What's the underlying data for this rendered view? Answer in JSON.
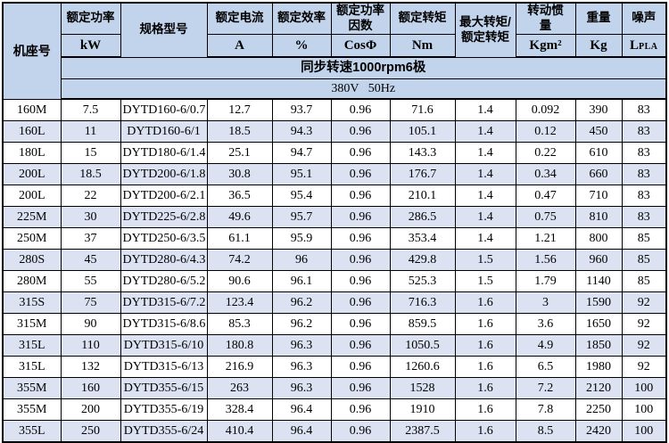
{
  "table": {
    "header": {
      "frame_col": "机座号",
      "rated_power_title": "额定功率",
      "rated_power_unit": "kW",
      "model_title": "规格型号",
      "rated_current_title": "额定电流",
      "rated_current_unit": "A",
      "rated_efficiency_title": "额定效率",
      "rated_efficiency_unit": "%",
      "power_factor_title": "额定功率因数",
      "power_factor_unit": "CosΦ",
      "rated_torque_title": "额定转矩",
      "rated_torque_unit": "Nm",
      "max_torque_ratio_title": "最大转矩/额定转矩",
      "inertia_title": "转动惯量",
      "inertia_unit": "Kgm²",
      "weight_title": "重量",
      "weight_unit": "Kg",
      "noise_title": "噪声",
      "noise_unit_main": "L",
      "noise_unit_sub": "PLA",
      "speed_row": "同步转速1000rpm6极",
      "voltage_row": "380V   50Hz"
    },
    "columns": [
      "机座号",
      "额定功率 kW",
      "规格型号",
      "额定电流 A",
      "额定效率 %",
      "额定功率因数 CosΦ",
      "额定转矩 Nm",
      "最大转矩/额定转矩",
      "转动惯量 Kgm²",
      "重量 Kg",
      "噪声 LPLA"
    ],
    "rows": [
      [
        "160M",
        "7.5",
        "DYTD160-6/0.7",
        "12.7",
        "93.7",
        "0.96",
        "71.6",
        "1.4",
        "0.092",
        "390",
        "83"
      ],
      [
        "160L",
        "11",
        "DYTD160-6/1",
        "18.5",
        "94.3",
        "0.96",
        "105.1",
        "1.4",
        "0.12",
        "450",
        "83"
      ],
      [
        "180L",
        "15",
        "DYTD180-6/1.4",
        "25.1",
        "94.7",
        "0.96",
        "143.3",
        "1.4",
        "0.22",
        "610",
        "83"
      ],
      [
        "200L",
        "18.5",
        "DYTD200-6/1.8",
        "30.8",
        "95.1",
        "0.96",
        "176.7",
        "1.4",
        "0.34",
        "660",
        "83"
      ],
      [
        "200L",
        "22",
        "DYTD200-6/2.1",
        "36.5",
        "95.4",
        "0.96",
        "210.1",
        "1.4",
        "0.47",
        "710",
        "83"
      ],
      [
        "225M",
        "30",
        "DYTD225-6/2.8",
        "49.6",
        "95.7",
        "0.96",
        "286.5",
        "1.4",
        "0.75",
        "810",
        "83"
      ],
      [
        "250M",
        "37",
        "DYTD250-6/3.5",
        "61.1",
        "95.9",
        "0.96",
        "353.4",
        "1.4",
        "1.21",
        "800",
        "85"
      ],
      [
        "280S",
        "45",
        "DYTD280-6/4.3",
        "74.2",
        "96",
        "0.96",
        "429.8",
        "1.5",
        "1.56",
        "960",
        "85"
      ],
      [
        "280M",
        "55",
        "DYTD280-6/5.2",
        "90.6",
        "96.1",
        "0.96",
        "525.3",
        "1.5",
        "1.79",
        "1140",
        "85"
      ],
      [
        "315S",
        "75",
        "DYTD315-6/7.2",
        "123.4",
        "96.2",
        "0.96",
        "716.3",
        "1.6",
        "3",
        "1590",
        "92"
      ],
      [
        "315M",
        "90",
        "DYTD315-6/8.6",
        "85.3",
        "96.2",
        "0.96",
        "859.5",
        "1.6",
        "3.6",
        "1650",
        "92"
      ],
      [
        "315L",
        "110",
        "DYTD315-6/10",
        "180.8",
        "96.3",
        "0.96",
        "1050.5",
        "1.6",
        "4.9",
        "1850",
        "92"
      ],
      [
        "315L",
        "132",
        "DYTD315-6/13",
        "216.9",
        "96.3",
        "0.96",
        "1260.6",
        "1.6",
        "6.5",
        "1980",
        "92"
      ],
      [
        "355M",
        "160",
        "DYTD355-6/15",
        "263",
        "96.3",
        "0.96",
        "1528",
        "1.6",
        "7.2",
        "2120",
        "100"
      ],
      [
        "355M",
        "200",
        "DYTD355-6/19",
        "328.4",
        "96.4",
        "0.96",
        "1910",
        "1.6",
        "7.8",
        "2250",
        "100"
      ],
      [
        "355L",
        "250",
        "DYTD355-6/24",
        "410.4",
        "96.4",
        "0.96",
        "2387.5",
        "1.6",
        "8.5",
        "2420",
        "100"
      ]
    ]
  },
  "colors": {
    "header_bg": "#c2d4ec",
    "alt_row_bg": "#dce2f1",
    "border": "#000000",
    "text": "#000000"
  }
}
